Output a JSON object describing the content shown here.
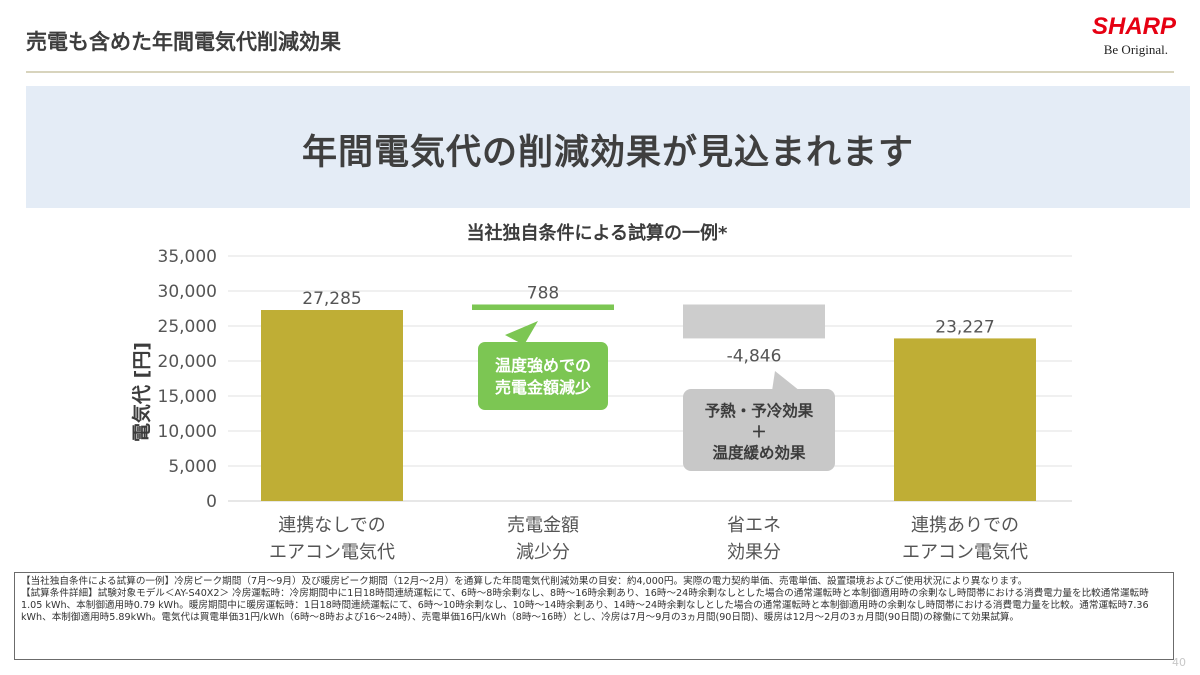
{
  "header": {
    "title": "売電も含めた年間電気代削減効果",
    "logo_text": "SHARP",
    "logo_tagline": "Be Original."
  },
  "banner": {
    "headline": "年間電気代の削減効果が見込まれます"
  },
  "colors": {
    "bar_olive": "#bfae35",
    "bar_green": "#7cc653",
    "bar_gray": "#cdcdcd",
    "callout_green": "#7cc653",
    "callout_gray": "#c8c8c8",
    "logo_red": "#e60012",
    "banner_bg": "#e4ecf6"
  },
  "chart_data": {
    "type": "bar",
    "subtype": "waterfall",
    "title": "当社独自条件による試算の一例*",
    "ylabel": "電気代 [円]",
    "ylim": [
      0,
      35000
    ],
    "yticks": [
      0,
      5000,
      10000,
      15000,
      20000,
      25000,
      30000,
      35000
    ],
    "ytick_labels": [
      "0",
      "5,000",
      "10,000",
      "15,000",
      "20,000",
      "25,000",
      "30,000",
      "35,000"
    ],
    "grid": true,
    "categories": [
      [
        "連携なしでの",
        "エアコン電気代"
      ],
      [
        "売電金額",
        "減少分"
      ],
      [
        "省エネ",
        "効果分"
      ],
      [
        "連携ありでの",
        "エアコン電気代"
      ]
    ],
    "bars": [
      {
        "kind": "total",
        "start": 0,
        "end": 27285,
        "label": "27,285",
        "color": "#bfae35"
      },
      {
        "kind": "increase",
        "start": 27285,
        "end": 28073,
        "label": "788",
        "color": "#7cc653"
      },
      {
        "kind": "decrease",
        "start": 28073,
        "end": 23227,
        "label": "-4,846",
        "color": "#cdcdcd"
      },
      {
        "kind": "total",
        "start": 0,
        "end": 23227,
        "label": "23,227",
        "color": "#bfae35"
      }
    ],
    "annotations": [
      {
        "bar": 1,
        "lines": [
          "温度強めでの",
          "売電金額減少"
        ],
        "color": "#7cc653",
        "text_color": "#ffffff"
      },
      {
        "bar": 2,
        "lines": [
          "予熱・予冷効果",
          "＋",
          "温度緩め効果"
        ],
        "color": "#c8c8c8",
        "text_color": "#3c3c3c"
      }
    ]
  },
  "footnote": {
    "lines": [
      "【当社独自条件による試算の一例】冷房ピーク期間（7月～9月）及び暖房ピーク期間（12月～2月）を通算した年間電気代削減効果の目安：約4,000円。実際の電力契約単価、売電単価、設置環境およびご使用状況により異なります。",
      "【試算条件詳細】試験対象モデル＜AY-S40X2＞ 冷房運転時：冷房期間中に1日18時間連続運転にて、6時～8時余剰なし、8時～16時余剰あり、16時～24時余剰なしとした場合の通常運転時と本制御適用時の余剰なし時間帯における消費電力量を比較通常運転時1.05 kWh、本制御適用時0.79 kWh。暖房期間中に暖房運転時：1日18時間連続運転にて、6時～10時余剰なし、10時～14時余剰あり、14時～24時余剰なしとした場合の通常運転時と本制御適用時の余剰なし時間帯における消費電力量を比較。通常運転時7.36 kWh、本制御適用時5.89kWh。電気代は買電単価31円/kWh（6時～8時および16～24時）、売電単価16円/kWh（8時～16時）とし、冷房は7月～9月の3ヵ月間(90日間)、暖房は12月～2月の3ヵ月間(90日間)の稼働にて効果試算。"
    ]
  },
  "page": {
    "number": "40"
  }
}
